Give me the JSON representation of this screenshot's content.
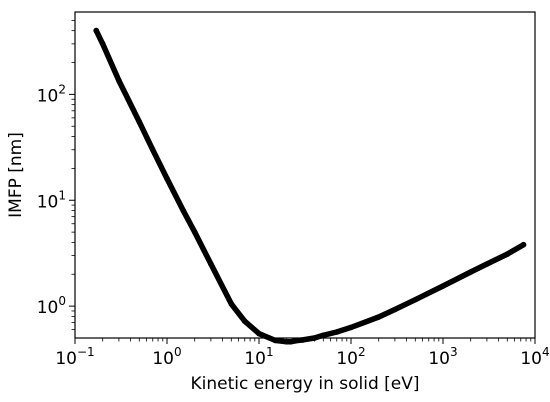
{
  "chart_data": {
    "type": "line",
    "title": "",
    "xlabel": "Kinetic energy in solid [eV]",
    "ylabel": "IMFP [nm]",
    "xscale": "log",
    "yscale": "log",
    "xlim": [
      0.1,
      10000
    ],
    "ylim": [
      0.5,
      600
    ],
    "grid": false,
    "x_ticks": [
      {
        "base": "10",
        "exp": "−1",
        "value": 0.1
      },
      {
        "base": "10",
        "exp": "0",
        "value": 1
      },
      {
        "base": "10",
        "exp": "1",
        "value": 10
      },
      {
        "base": "10",
        "exp": "2",
        "value": 100
      },
      {
        "base": "10",
        "exp": "3",
        "value": 1000
      },
      {
        "base": "10",
        "exp": "4",
        "value": 10000
      }
    ],
    "y_ticks": [
      {
        "base": "10",
        "exp": "0",
        "value": 1
      },
      {
        "base": "10",
        "exp": "1",
        "value": 10
      },
      {
        "base": "10",
        "exp": "2",
        "value": 100
      }
    ],
    "series": [
      {
        "color": "#000000",
        "x": [
          0.17,
          0.2,
          0.3,
          0.5,
          0.7,
          1,
          1.5,
          2,
          3,
          5,
          7,
          10,
          15,
          20,
          22,
          25,
          30,
          40,
          50,
          70,
          100,
          200,
          300,
          500,
          1000,
          2000,
          3000,
          5000,
          7500
        ],
        "y": [
          400,
          300,
          135,
          55,
          30,
          16,
          8,
          5,
          2.5,
          1.05,
          0.72,
          0.55,
          0.475,
          0.46,
          0.46,
          0.47,
          0.48,
          0.5,
          0.53,
          0.57,
          0.63,
          0.79,
          0.93,
          1.15,
          1.55,
          2.1,
          2.5,
          3.1,
          3.8
        ]
      }
    ]
  }
}
